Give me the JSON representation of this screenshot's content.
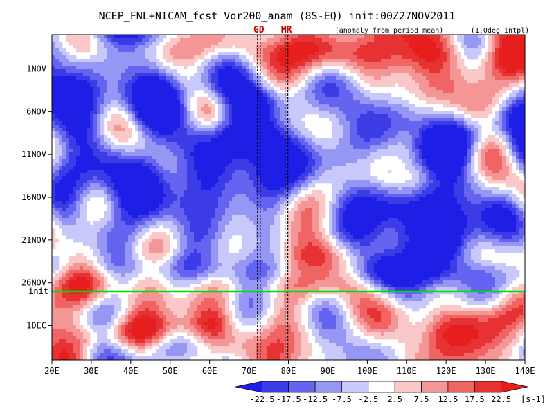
{
  "chart_data": {
    "type": "heatmap",
    "title": "NCEP_FNL+NICAM_fcst Vor200_anam (8S-EQ) init:00Z27NOV2011",
    "subtitle_left": "(anomaly from period mean)",
    "subtitle_right": "(1.0deg intpl)",
    "x_tick_labels": [
      "20E",
      "30E",
      "40E",
      "50E",
      "60E",
      "70E",
      "80E",
      "90E",
      "100E",
      "110E",
      "120E",
      "130E",
      "140E"
    ],
    "x_range": [
      20,
      140
    ],
    "y_tick_labels": [
      "1NOV",
      "6NOV",
      "11NOV",
      "16NOV",
      "21NOV",
      "26NOV",
      "1DEC"
    ],
    "y_range": [
      "28OCT2011",
      "5DEC2011"
    ],
    "init_label": "init",
    "init_day": 30.0,
    "site_markers": [
      {
        "label": "GD",
        "lon": 72.5
      },
      {
        "label": "MR",
        "lon": 79.5
      }
    ],
    "colorbar": {
      "labels": [
        "-22.5",
        "-17.5",
        "-12.5",
        "-7.5",
        "-2.5",
        "2.5",
        "7.5",
        "12.5",
        "17.5",
        "22.5"
      ],
      "unit": "[s-1]",
      "colors": [
        "#1e1ee6",
        "#3c3ce6",
        "#6464f0",
        "#9696f5",
        "#c8c8fa",
        "#ffffff",
        "#fac8c8",
        "#f59696",
        "#f06464",
        "#e63232",
        "#e61e1e"
      ]
    },
    "colors": {
      "init_line": "#00dd00",
      "marker_text": "#cc0000"
    },
    "features": [
      {
        "lon0": 20,
        "day0": 6,
        "lon1": 140,
        "day1": 12,
        "val": -14,
        "w": 2.5
      },
      {
        "lon0": 50,
        "day0": 9,
        "lon1": 80,
        "day1": 20,
        "val": -18,
        "w": 4
      },
      {
        "lon0": 110,
        "day0": 15,
        "lon1": 140,
        "day1": 9,
        "val": -16,
        "w": 1.6
      },
      {
        "lon0": 25,
        "day0": 20,
        "lon1": 45,
        "day1": 18,
        "val": -15,
        "w": 3
      },
      {
        "lon0": 85,
        "day0": 14,
        "lon1": 110,
        "day1": 26,
        "val": -10,
        "w": 4
      },
      {
        "lon0": 62,
        "day0": 9,
        "lon1": 76,
        "day1": 10,
        "val": 20,
        "w": 1.6
      },
      {
        "lon0": 30,
        "day0": 1,
        "lon1": 140,
        "day1": 3,
        "val": 10,
        "w": 1.5
      },
      {
        "lon0": 110,
        "day0": 21,
        "lon1": 140,
        "day1": 22,
        "val": -12,
        "w": 2.5
      },
      {
        "lon0": 20,
        "day0": 27,
        "lon1": 140,
        "day1": 28,
        "val": -10,
        "w": 1.2
      },
      {
        "lon0": 30,
        "day0": 35,
        "lon1": 60,
        "day1": 34,
        "val": 16,
        "w": 1.3
      },
      {
        "lon0": 120,
        "day0": 34,
        "lon1": 140,
        "day1": 32,
        "val": 12,
        "w": 1.5
      },
      {
        "lon0": 90,
        "day0": 16,
        "lon1": 110,
        "day1": 17,
        "val": 9,
        "w": 2
      }
    ]
  }
}
